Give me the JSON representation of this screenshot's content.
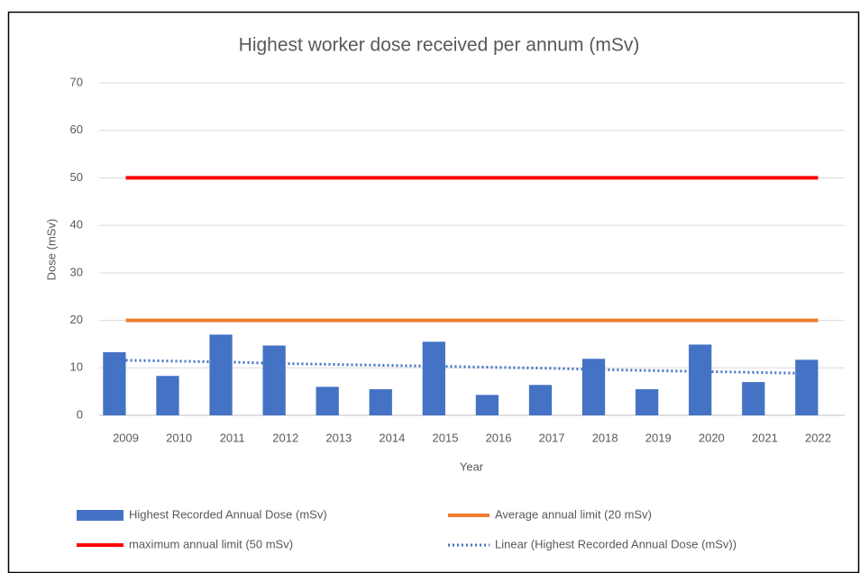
{
  "chart_data": {
    "type": "bar",
    "title": "Highest worker dose received per annum (mSv)",
    "x_label": "Year",
    "y_label": "Dose (mSv)",
    "categories": [
      "2009",
      "2010",
      "2011",
      "2012",
      "2013",
      "2014",
      "2015",
      "2016",
      "2017",
      "2018",
      "2019",
      "2020",
      "2021",
      "2022"
    ],
    "series": [
      {
        "name": "Highest Recorded Annual Dose (mSv)",
        "type": "bar",
        "color": "#4472c4",
        "values": [
          13.3,
          8.3,
          17.0,
          14.7,
          6.0,
          5.5,
          15.5,
          4.3,
          6.4,
          11.9,
          5.5,
          14.9,
          7.0,
          11.7
        ]
      },
      {
        "name": "Average annual limit (20 mSv)",
        "type": "line",
        "color": "#ed7d31",
        "values": [
          20,
          20,
          20,
          20,
          20,
          20,
          20,
          20,
          20,
          20,
          20,
          20,
          20,
          20
        ]
      },
      {
        "name": "maximum annual limit (50 mSv)",
        "type": "line",
        "color": "#ff0000",
        "values": [
          50,
          50,
          50,
          50,
          50,
          50,
          50,
          50,
          50,
          50,
          50,
          50,
          50,
          50
        ]
      },
      {
        "name": "Linear (Highest Recorded Annual Dose (mSv))",
        "type": "line",
        "dash": "dotted",
        "color": "#4472c4",
        "values": [
          11.6,
          11.4,
          11.2,
          10.9,
          10.7,
          10.5,
          10.3,
          10.1,
          9.9,
          9.6,
          9.4,
          9.2,
          9.0,
          8.8
        ]
      }
    ],
    "ylim": [
      0,
      70
    ],
    "yticks": [
      0,
      10,
      20,
      30,
      40,
      50,
      60,
      70
    ],
    "grid": true,
    "legend": "bottom"
  }
}
